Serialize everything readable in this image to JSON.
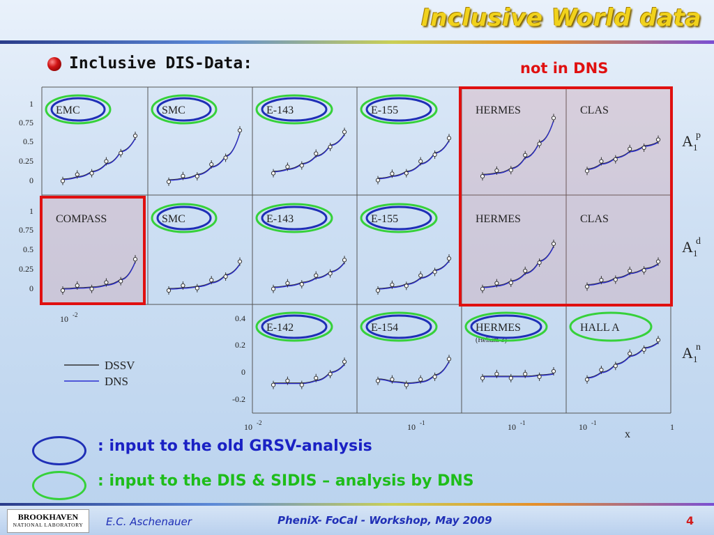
{
  "slide": {
    "title": "Inclusive World data",
    "bullet": "Inclusive DIS-Data:",
    "note_not_in_dns": "not in DNS",
    "legend_blue": ": input to the old GRSV-analysis",
    "legend_green": ": input to the DIS & SIDIS – analysis by DNS",
    "footer_author": "E.C. Aschenauer",
    "footer_event": "PheniX- FoCal - Workshop, May 2009",
    "footer_page": "4",
    "logo_top": "BROOKHAVEN",
    "logo_bottom": "NATIONAL LABORATORY",
    "colors": {
      "title": "#f1d21c",
      "blue_ring": "#1f2fb6",
      "green_ring": "#36d13a",
      "red_box": "#e01010",
      "dssv": "#333333",
      "dns": "#2a2cd0"
    }
  },
  "chart_data": {
    "type": "scatter",
    "description_free": true,
    "row_labels": [
      "A1p",
      "A1d",
      "A1n"
    ],
    "rows": [
      {
        "yticks": [
          "1",
          "0.75",
          "0.5",
          "0.25",
          "0"
        ],
        "panels": [
          {
            "label": "EMC",
            "ring": "both"
          },
          {
            "label": "SMC",
            "ring": "both"
          },
          {
            "label": "E-143",
            "ring": "both"
          },
          {
            "label": "E-155",
            "ring": "both"
          },
          {
            "label": "HERMES",
            "ring": "none",
            "excluded": true
          },
          {
            "label": "CLAS",
            "ring": "none",
            "excluded": true
          }
        ]
      },
      {
        "yticks": [
          "1",
          "0.75",
          "0.5",
          "0.25",
          "0"
        ],
        "panels": [
          {
            "label": "COMPASS",
            "ring": "none",
            "excluded": true
          },
          {
            "label": "SMC",
            "ring": "both"
          },
          {
            "label": "E-143",
            "ring": "both"
          },
          {
            "label": "E-155",
            "ring": "both"
          },
          {
            "label": "HERMES",
            "ring": "none",
            "excluded": true
          },
          {
            "label": "CLAS",
            "ring": "none",
            "excluded": true
          }
        ]
      },
      {
        "yticks": [
          "0.4",
          "0.2",
          "0",
          "-0.2"
        ],
        "panels": [
          {
            "label": "E-142",
            "ring": "both"
          },
          {
            "label": "E-154",
            "ring": "both"
          },
          {
            "label": "HERMES",
            "sublabel": "(Helium-3)",
            "ring": "both"
          },
          {
            "label": "HALL A",
            "ring": "green"
          }
        ]
      }
    ],
    "xticks_row2": [
      "10-2"
    ],
    "xticks_row3": [
      "10-2",
      "10-1",
      "10-1",
      "10-1",
      "1"
    ],
    "xlabel": "x",
    "legend": [
      {
        "name": "DSSV",
        "color": "#333333"
      },
      {
        "name": "DNS",
        "color": "#2a2cd0"
      }
    ],
    "series_panel_values": {
      "p_row_curves": [
        [
          0.02,
          0.05,
          0.12,
          0.22,
          0.38,
          0.55
        ],
        [
          0.01,
          0.03,
          0.08,
          0.18,
          0.32,
          0.62
        ],
        [
          0.12,
          0.15,
          0.22,
          0.32,
          0.46,
          0.6
        ],
        [
          0.03,
          0.06,
          0.12,
          0.22,
          0.36,
          0.52
        ],
        [
          0.08,
          0.1,
          0.16,
          0.3,
          0.5,
          0.78
        ],
        [
          0.15,
          0.22,
          0.3,
          0.38,
          0.45,
          0.5
        ]
      ],
      "d_row_curves": [
        [
          0.0,
          0.01,
          0.02,
          0.05,
          0.12,
          0.35
        ],
        [
          0.0,
          0.01,
          0.03,
          0.08,
          0.18,
          0.32
        ],
        [
          0.02,
          0.04,
          0.08,
          0.14,
          0.22,
          0.34
        ],
        [
          0.0,
          0.02,
          0.06,
          0.14,
          0.24,
          0.36
        ],
        [
          0.02,
          0.04,
          0.1,
          0.2,
          0.36,
          0.55
        ],
        [
          0.05,
          0.08,
          0.14,
          0.2,
          0.26,
          0.32
        ]
      ],
      "n_row_curves": [
        [
          -0.08,
          -0.08,
          -0.08,
          -0.06,
          0.0,
          0.06
        ],
        [
          -0.05,
          -0.07,
          -0.08,
          -0.07,
          -0.02,
          0.08
        ],
        [
          -0.03,
          -0.03,
          -0.03,
          -0.03,
          -0.02,
          -0.01
        ],
        [
          -0.04,
          0.0,
          0.06,
          0.12,
          0.18,
          0.22
        ]
      ]
    }
  }
}
